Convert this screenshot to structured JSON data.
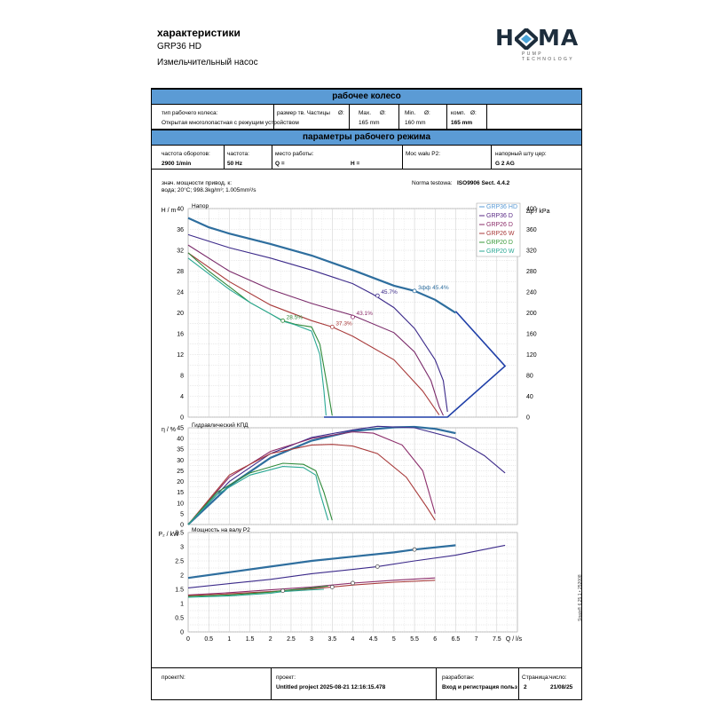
{
  "header": {
    "title": "характеристики",
    "model": "GRP36 HD",
    "description": "Измельчительный насос",
    "logo_text": "HOMA",
    "logo_sub": "PUMP TECHNOLOGY"
  },
  "impeller": {
    "heading": "рабочее колесо",
    "type_label": "тип рабочего колеса:",
    "type_value": "Открытая многолопастная с режущим устройством",
    "particle_label": "размер тв. Частицы",
    "particle_sym": "Ø:",
    "max_label": "Max.",
    "max_sym": "Ø:",
    "max_value": "165 mm",
    "min_label": "Min.",
    "min_sym": "Ø:",
    "min_value": "160 mm",
    "comp_label": "комп.",
    "comp_sym": "Ø:",
    "comp_value": "165 mm"
  },
  "operating": {
    "heading": "параметры рабочего режима",
    "speed_label": "частота оборотов:",
    "speed_value": "2900 1/min",
    "freq_label": "частота:",
    "freq_value": "50 Hz",
    "point_label": "место работы:",
    "q_value": "Q =",
    "h_value": "H =",
    "power_label": "Moc wału P2:",
    "outlet_label": "напорный шту цер:",
    "outlet_value": "G 2 AG"
  },
  "notes": {
    "line1": "знач. мощности привод. к:",
    "line2": "вода; 20°C; 998.3kg/m³; 1.005mm²/s",
    "norm_label": "Norma testowa:",
    "norm_value": "ISO9906 Sect. 4.4.2"
  },
  "footer": {
    "project_no_label": "проектN:",
    "project_label": "проект:",
    "project_value": "Untitled project 2025-08-21 12:16:15.478",
    "author_label": "разработан:",
    "author_value": "Вход и регистрация польз",
    "page_label": "Страница:",
    "page_value": "2",
    "date_label": "число:",
    "date_value": "21/08/25"
  },
  "stamp": "Spaix® 6.25.1 • 252008",
  "chart_data": [
    {
      "type": "line",
      "panel_title": "Напор",
      "ylabel": "H / m",
      "ylabel_right": "Δp / kPa",
      "xlabel": "Q / l/s",
      "xlim": [
        0,
        8
      ],
      "ylim": [
        0,
        40
      ],
      "yticks": [
        0,
        4,
        8,
        12,
        16,
        20,
        24,
        28,
        32,
        36,
        40
      ],
      "yticks_right": [
        0,
        40,
        80,
        120,
        160,
        200,
        240,
        280,
        320,
        360,
        400
      ],
      "legend": [
        "GRP36 HD",
        "GRP36 D",
        "GRP26 D",
        "GRP26 W",
        "GRP20 D",
        "GRP20 W"
      ],
      "legend_colors": [
        "#5b9bd5",
        "#5a2a86",
        "#8b2c6a",
        "#a83a3a",
        "#3a9a3a",
        "#2aa894"
      ],
      "series": [
        {
          "name": "GRP36 HD",
          "color": "#2e6e9e",
          "points": [
            [
              0,
              38.2
            ],
            [
              0.5,
              36.4
            ],
            [
              1,
              35.2
            ],
            [
              2,
              33.2
            ],
            [
              3,
              31
            ],
            [
              4,
              28.2
            ],
            [
              5,
              25.2
            ],
            [
              5.5,
              24.2
            ],
            [
              6,
              22.5
            ],
            [
              6.5,
              20
            ]
          ]
        },
        {
          "name": "GRP36 D",
          "color": "#3c2a8a",
          "points": [
            [
              0,
              35
            ],
            [
              1,
              32.5
            ],
            [
              2,
              30.5
            ],
            [
              3,
              28.2
            ],
            [
              4,
              25.6
            ],
            [
              4.5,
              23.5
            ],
            [
              5,
              21
            ],
            [
              5.5,
              17
            ],
            [
              6,
              11
            ],
            [
              6.2,
              7
            ],
            [
              6.3,
              1
            ]
          ]
        },
        {
          "name": "GRP26 D",
          "color": "#7a2a6a",
          "points": [
            [
              0,
              33
            ],
            [
              1,
              28
            ],
            [
              2,
              24.5
            ],
            [
              3,
              21.8
            ],
            [
              4,
              19.5
            ],
            [
              5,
              16.2
            ],
            [
              5.5,
              12.5
            ],
            [
              5.9,
              7
            ],
            [
              6.1,
              2
            ],
            [
              6.2,
              0.3
            ]
          ]
        },
        {
          "name": "GRP26 W",
          "color": "#a83a3a",
          "points": [
            [
              0,
              31.5
            ],
            [
              1,
              26
            ],
            [
              2,
              21.5
            ],
            [
              3,
              18.5
            ],
            [
              3.5,
              17.3
            ],
            [
              4,
              15.5
            ],
            [
              5,
              11
            ],
            [
              5.7,
              5
            ],
            [
              6.1,
              0.4
            ]
          ]
        },
        {
          "name": "GRP20 D",
          "color": "#2f8a3a",
          "points": [
            [
              0,
              31.5
            ],
            [
              0.5,
              28
            ],
            [
              1,
              25
            ],
            [
              1.5,
              22
            ],
            [
              2,
              19.8
            ],
            [
              2.3,
              18.5
            ],
            [
              2.6,
              17.8
            ],
            [
              3,
              17.3
            ],
            [
              3.2,
              14
            ],
            [
              3.4,
              5
            ],
            [
              3.5,
              0.3
            ]
          ]
        },
        {
          "name": "GRP20 W",
          "color": "#2aa894",
          "points": [
            [
              0,
              30.5
            ],
            [
              0.5,
              27.5
            ],
            [
              1,
              24.5
            ],
            [
              1.5,
              22
            ],
            [
              2,
              19.8
            ],
            [
              2.3,
              18.4
            ],
            [
              2.6,
              17.7
            ],
            [
              3,
              16.5
            ],
            [
              3.2,
              12
            ],
            [
              3.3,
              5
            ],
            [
              3.35,
              0.3
            ]
          ]
        }
      ],
      "operating_range": {
        "color": "#1f3fa8",
        "points": [
          [
            3.3,
            0
          ],
          [
            6.3,
            0
          ],
          [
            7.7,
            9.8
          ],
          [
            6.5,
            20.3
          ]
        ]
      },
      "annotations": [
        {
          "x": 4.6,
          "y": 23.3,
          "text": "45.7%",
          "color": "#3c2a8a"
        },
        {
          "x": 5.5,
          "y": 24.2,
          "text": "3фф  45.4%",
          "color": "#2e6e9e"
        },
        {
          "x": 4.0,
          "y": 19.2,
          "text": "43.1%",
          "color": "#8b2c6a"
        },
        {
          "x": 3.5,
          "y": 17.3,
          "text": "37.3%",
          "color": "#a83a3a"
        },
        {
          "x": 2.3,
          "y": 18.5,
          "text": "28.5%",
          "color": "#2f8a3a"
        }
      ]
    },
    {
      "type": "line",
      "panel_title": "Гидравлический КПД",
      "ylabel": "η / %",
      "xlim": [
        0,
        8
      ],
      "ylim": [
        0,
        45
      ],
      "yticks": [
        0,
        5,
        10,
        15,
        20,
        25,
        30,
        35,
        40,
        45
      ],
      "series": [
        {
          "name": "GRP36 HD",
          "color": "#2e6e9e",
          "points": [
            [
              0,
              0
            ],
            [
              1,
              18
            ],
            [
              2,
              31
            ],
            [
              3,
              39
            ],
            [
              4,
              43.5
            ],
            [
              5,
              45.2
            ],
            [
              5.5,
              45.4
            ],
            [
              6,
              44.5
            ],
            [
              6.5,
              42.5
            ]
          ]
        },
        {
          "name": "GRP36 D",
          "color": "#3c2a8a",
          "points": [
            [
              0,
              0
            ],
            [
              1,
              20
            ],
            [
              2,
              33
            ],
            [
              3,
              40.5
            ],
            [
              4,
              44
            ],
            [
              4.6,
              45.7
            ],
            [
              5.5,
              45
            ],
            [
              6.5,
              40
            ],
            [
              7.2,
              32
            ],
            [
              7.7,
              24
            ]
          ]
        },
        {
          "name": "GRP26 D",
          "color": "#8b2c6a",
          "points": [
            [
              0,
              0
            ],
            [
              1,
              22
            ],
            [
              2,
              34
            ],
            [
              3,
              40
            ],
            [
              4,
              43.1
            ],
            [
              4.5,
              42.5
            ],
            [
              5.2,
              37
            ],
            [
              5.7,
              25
            ],
            [
              6,
              5
            ]
          ]
        },
        {
          "name": "GRP26 W",
          "color": "#a83a3a",
          "points": [
            [
              0,
              0
            ],
            [
              1,
              23
            ],
            [
              2,
              33
            ],
            [
              3,
              37
            ],
            [
              3.5,
              37.3
            ],
            [
              4,
              36.5
            ],
            [
              4.6,
              33
            ],
            [
              5.3,
              22
            ],
            [
              5.8,
              8
            ],
            [
              6,
              2
            ]
          ]
        },
        {
          "name": "GRP20 D",
          "color": "#2f8a3a",
          "points": [
            [
              0,
              0
            ],
            [
              0.7,
              15
            ],
            [
              1.5,
              24
            ],
            [
              2.3,
              28.5
            ],
            [
              2.8,
              28
            ],
            [
              3.1,
              25
            ],
            [
              3.3,
              15
            ],
            [
              3.5,
              2
            ]
          ]
        },
        {
          "name": "GRP20 W",
          "color": "#2aa894",
          "points": [
            [
              0,
              0
            ],
            [
              0.7,
              14
            ],
            [
              1.5,
              23
            ],
            [
              2.3,
              27
            ],
            [
              2.8,
              26.5
            ],
            [
              3.1,
              23
            ],
            [
              3.2,
              15
            ],
            [
              3.4,
              2
            ]
          ]
        }
      ]
    },
    {
      "type": "line",
      "panel_title": "Мощность на валу  P2",
      "ylabel": "P₂ / kW",
      "xlabel": "Q / l/s",
      "xlim": [
        0,
        8
      ],
      "ylim": [
        0,
        3.5
      ],
      "yticks": [
        0,
        0.5,
        1,
        1.5,
        2,
        2.5,
        3,
        3.5
      ],
      "xticks": [
        0,
        0.5,
        1,
        1.5,
        2,
        2.5,
        3,
        3.5,
        4,
        4.5,
        5,
        5.5,
        6,
        6.5,
        7,
        7.5
      ],
      "series": [
        {
          "name": "GRP36 HD",
          "color": "#2e6e9e",
          "points": [
            [
              0,
              1.9
            ],
            [
              1,
              2.1
            ],
            [
              2,
              2.3
            ],
            [
              3,
              2.5
            ],
            [
              4,
              2.65
            ],
            [
              5,
              2.8
            ],
            [
              5.5,
              2.9
            ],
            [
              6.5,
              3.05
            ]
          ]
        },
        {
          "name": "GRP36 D",
          "color": "#3c2a8a",
          "points": [
            [
              0,
              1.55
            ],
            [
              1,
              1.7
            ],
            [
              2,
              1.85
            ],
            [
              3,
              2.05
            ],
            [
              4,
              2.2
            ],
            [
              4.6,
              2.3
            ],
            [
              5.5,
              2.5
            ],
            [
              6.5,
              2.7
            ],
            [
              7.7,
              3.05
            ]
          ]
        },
        {
          "name": "GRP26 D",
          "color": "#8b2c6a",
          "points": [
            [
              0,
              1.3
            ],
            [
              1,
              1.38
            ],
            [
              2,
              1.48
            ],
            [
              3,
              1.58
            ],
            [
              4,
              1.72
            ],
            [
              5,
              1.82
            ],
            [
              6,
              1.9
            ]
          ]
        },
        {
          "name": "GRP26 W",
          "color": "#a83a3a",
          "points": [
            [
              0,
              1.28
            ],
            [
              1,
              1.34
            ],
            [
              2,
              1.42
            ],
            [
              3,
              1.52
            ],
            [
              3.5,
              1.58
            ],
            [
              4,
              1.65
            ],
            [
              5,
              1.75
            ],
            [
              6,
              1.82
            ]
          ]
        },
        {
          "name": "GRP20 D",
          "color": "#2f8a3a",
          "points": [
            [
              0,
              1.25
            ],
            [
              1,
              1.3
            ],
            [
              2,
              1.4
            ],
            [
              2.3,
              1.45
            ],
            [
              3,
              1.55
            ],
            [
              3.4,
              1.62
            ]
          ]
        },
        {
          "name": "GRP20 W",
          "color": "#2aa894",
          "points": [
            [
              0,
              1.22
            ],
            [
              1,
              1.27
            ],
            [
              2,
              1.36
            ],
            [
              2.3,
              1.42
            ],
            [
              3,
              1.48
            ],
            [
              3.3,
              1.5
            ]
          ]
        }
      ],
      "markers": [
        [
          2.3,
          1.45
        ],
        [
          3.5,
          1.58
        ],
        [
          4.0,
          1.72
        ],
        [
          4.6,
          2.3
        ],
        [
          5.5,
          2.9
        ]
      ]
    }
  ]
}
